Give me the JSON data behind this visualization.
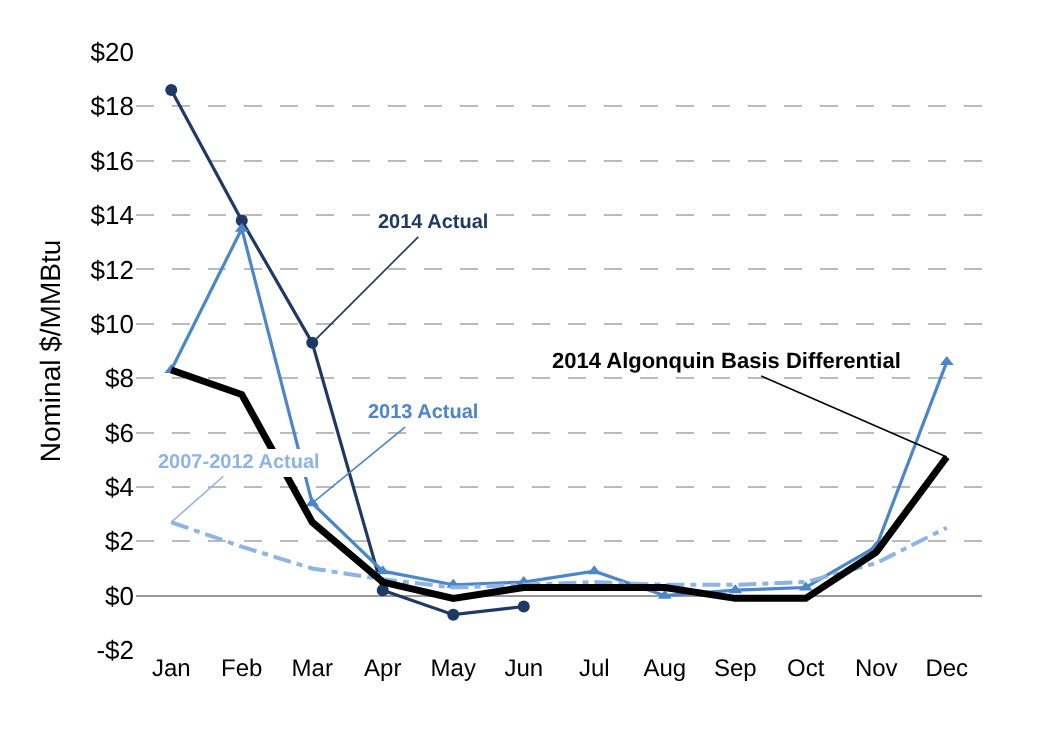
{
  "chart_data": {
    "type": "line",
    "ylabel": "Nominal $/MMBtu",
    "categories": [
      "Jan",
      "Feb",
      "Mar",
      "Apr",
      "May",
      "Jun",
      "Jul",
      "Aug",
      "Sep",
      "Oct",
      "Nov",
      "Dec"
    ],
    "series": [
      {
        "name": "2014 Actual",
        "color": "#1f3864",
        "marker": "circle",
        "line_style": "solid",
        "values": [
          18.6,
          13.8,
          9.3,
          0.2,
          -0.7,
          -0.4,
          null,
          null,
          null,
          null,
          null,
          null
        ]
      },
      {
        "name": "2013 Actual",
        "color": "#4a86c8",
        "marker": "triangle",
        "line_style": "solid",
        "values": [
          8.3,
          13.5,
          3.4,
          0.9,
          0.4,
          0.5,
          0.9,
          0.0,
          0.2,
          0.3,
          1.8,
          8.6
        ]
      },
      {
        "name": "2007-2012 Actual",
        "color": "#8db4e2",
        "marker": "none",
        "line_style": "dashdot",
        "values": [
          2.7,
          1.8,
          1.0,
          0.6,
          0.3,
          0.4,
          0.5,
          0.4,
          0.4,
          0.5,
          1.2,
          2.5
        ]
      },
      {
        "name": "2014 Algonquin Basis Differential",
        "color": "#000000",
        "marker": "none",
        "line_style": "solid",
        "values": [
          8.3,
          7.4,
          2.7,
          0.5,
          -0.1,
          0.3,
          0.3,
          0.3,
          -0.1,
          -0.1,
          1.6,
          5.1
        ]
      }
    ],
    "ylim": [
      -2,
      20
    ],
    "yticks": [
      {
        "value": -2,
        "label": "-$2"
      },
      {
        "value": 0,
        "label": "$0"
      },
      {
        "value": 2,
        "label": "$2"
      },
      {
        "value": 4,
        "label": "$4"
      },
      {
        "value": 6,
        "label": "$6"
      },
      {
        "value": 8,
        "label": "$8"
      },
      {
        "value": 10,
        "label": "$10"
      },
      {
        "value": 12,
        "label": "$12"
      },
      {
        "value": 14,
        "label": "$14"
      },
      {
        "value": 16,
        "label": "$16"
      },
      {
        "value": 18,
        "label": "$18"
      },
      {
        "value": 20,
        "label": "$20"
      }
    ],
    "grid": "y",
    "legend": false
  }
}
